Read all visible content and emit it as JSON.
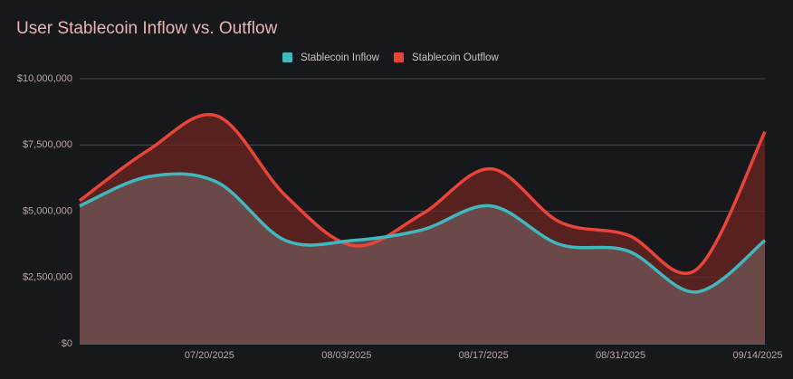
{
  "chart_data": {
    "type": "area",
    "title": "User Stablecoin Inflow vs. Outflow",
    "x": [
      "2025-07-06",
      "2025-07-13",
      "2025-07-20",
      "2025-07-27",
      "2025-08-03",
      "2025-08-10",
      "2025-08-17",
      "2025-08-24",
      "2025-08-31",
      "2025-09-07",
      "2025-09-14"
    ],
    "xlim": [
      "2025-07-06",
      "2025-09-14"
    ],
    "xticks": [
      {
        "value": "2025-07-20",
        "label": "07/20/2025"
      },
      {
        "value": "2025-08-03",
        "label": "08/03/2025"
      },
      {
        "value": "2025-08-17",
        "label": "08/17/2025"
      },
      {
        "value": "2025-08-31",
        "label": "08/31/2025"
      },
      {
        "value": "2025-09-14",
        "label": "09/14/2025"
      }
    ],
    "ylim": [
      0,
      10000000
    ],
    "yticks": [
      {
        "value": 0,
        "label": "$0"
      },
      {
        "value": 2500000,
        "label": "$2,500,000"
      },
      {
        "value": 5000000,
        "label": "$5,000,000"
      },
      {
        "value": 7500000,
        "label": "$7,500,000"
      },
      {
        "value": 10000000,
        "label": "$10,000,000"
      }
    ],
    "grid": true,
    "legend": "top",
    "series": [
      {
        "name": "Stablecoin Inflow",
        "color": "#3fb8c0",
        "values": [
          5200000,
          6300000,
          6100000,
          3900000,
          3900000,
          4300000,
          5200000,
          3750000,
          3500000,
          1950000,
          3900000
        ]
      },
      {
        "name": "Stablecoin Outflow",
        "color": "#e8443a",
        "values": [
          5400000,
          7300000,
          8600000,
          5600000,
          3700000,
          4900000,
          6600000,
          4600000,
          4100000,
          2800000,
          8000000
        ]
      }
    ]
  }
}
